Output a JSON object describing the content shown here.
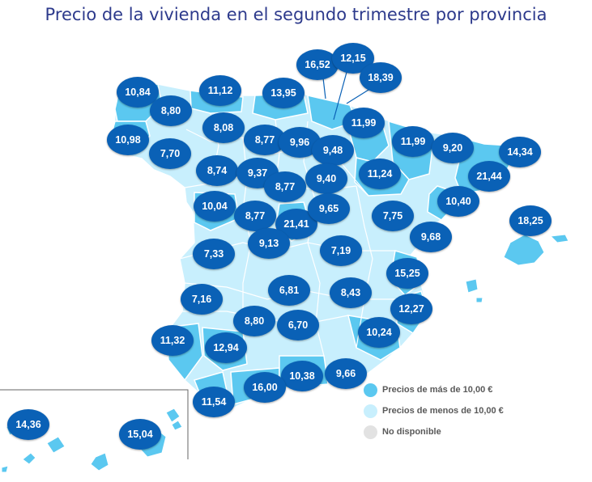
{
  "title": "Precio de la vivienda en el segundo trimestre por provincia",
  "colors": {
    "above": "#5bc8f0",
    "below": "#c8effd",
    "na": "#e2e2e2",
    "badge": "#0a61b6",
    "border": "#ffffff",
    "title": "#2d3a8c"
  },
  "legend": [
    {
      "label": "Precios de más de 10,00 €",
      "color": "#5bc8f0"
    },
    {
      "label": "Precios de menos de 10,00 €",
      "color": "#c8effd"
    },
    {
      "label": "No disponible",
      "color": "#e2e2e2"
    }
  ],
  "provinces": [
    {
      "value": "10,84"
    },
    {
      "value": "8,80"
    },
    {
      "value": "11,12"
    },
    {
      "value": "13,95"
    },
    {
      "value": "16,52"
    },
    {
      "value": "12,15"
    },
    {
      "value": "18,39"
    },
    {
      "value": "10,98"
    },
    {
      "value": "7,70"
    },
    {
      "value": "8,08"
    },
    {
      "value": "8,77"
    },
    {
      "value": "9,96"
    },
    {
      "value": "11,99"
    },
    {
      "value": "9,48"
    },
    {
      "value": "11,99"
    },
    {
      "value": "9,20"
    },
    {
      "value": "14,34"
    },
    {
      "value": "8,74"
    },
    {
      "value": "9,37"
    },
    {
      "value": "8,77"
    },
    {
      "value": "9,40"
    },
    {
      "value": "11,24"
    },
    {
      "value": "21,44"
    },
    {
      "value": "10,04"
    },
    {
      "value": "8,77"
    },
    {
      "value": "21,41"
    },
    {
      "value": "9,65"
    },
    {
      "value": "7,75"
    },
    {
      "value": "10,40"
    },
    {
      "value": "18,25"
    },
    {
      "value": "9,13"
    },
    {
      "value": "9,68"
    },
    {
      "value": "7,33"
    },
    {
      "value": "7,19"
    },
    {
      "value": "15,25"
    },
    {
      "value": "6,81"
    },
    {
      "value": "8,43"
    },
    {
      "value": "7,16"
    },
    {
      "value": "12,27"
    },
    {
      "value": "8,80"
    },
    {
      "value": "6,70"
    },
    {
      "value": "10,24"
    },
    {
      "value": "11,32"
    },
    {
      "value": "12,94"
    },
    {
      "value": "10,38"
    },
    {
      "value": "9,66"
    },
    {
      "value": "16,00"
    },
    {
      "value": "11,54"
    },
    {
      "value": "14,36"
    },
    {
      "value": "15,04"
    }
  ]
}
